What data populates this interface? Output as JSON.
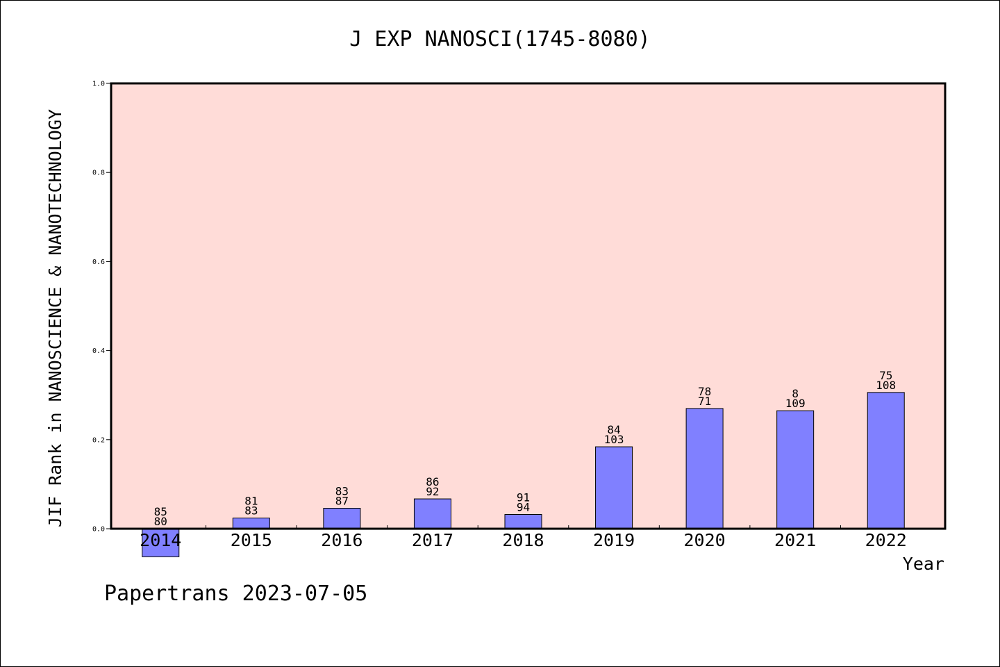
{
  "chart_data": {
    "type": "bar",
    "title": "J EXP NANOSCI(1745-8080)",
    "xlabel": "Year",
    "ylabel": "JIF Rank in NANOSCIENCE & NANOTECHNOLOGY",
    "ylim": [
      0.0,
      1.0
    ],
    "yticks": [
      "0.0",
      "0.2",
      "0.4",
      "0.6",
      "0.8",
      "1.0"
    ],
    "categories": [
      "2014",
      "2015",
      "2016",
      "2017",
      "2018",
      "2019",
      "2020",
      "2021",
      "2022"
    ],
    "values": [
      -0.063,
      0.024,
      0.046,
      0.067,
      0.032,
      0.184,
      0.27,
      0.265,
      0.306
    ],
    "label_top": [
      "85",
      "81",
      "83",
      "86",
      "91",
      "84",
      "78",
      "8",
      "75"
    ],
    "label_bottom": [
      "80",
      "83",
      "87",
      "92",
      "94",
      "103",
      "71",
      "109",
      "108"
    ],
    "grid": false,
    "colors": {
      "bar": "#8080ff",
      "plot_bg": "#ffdcd8",
      "frame": "#000000"
    }
  },
  "footer": "Papertrans 2023-07-05"
}
